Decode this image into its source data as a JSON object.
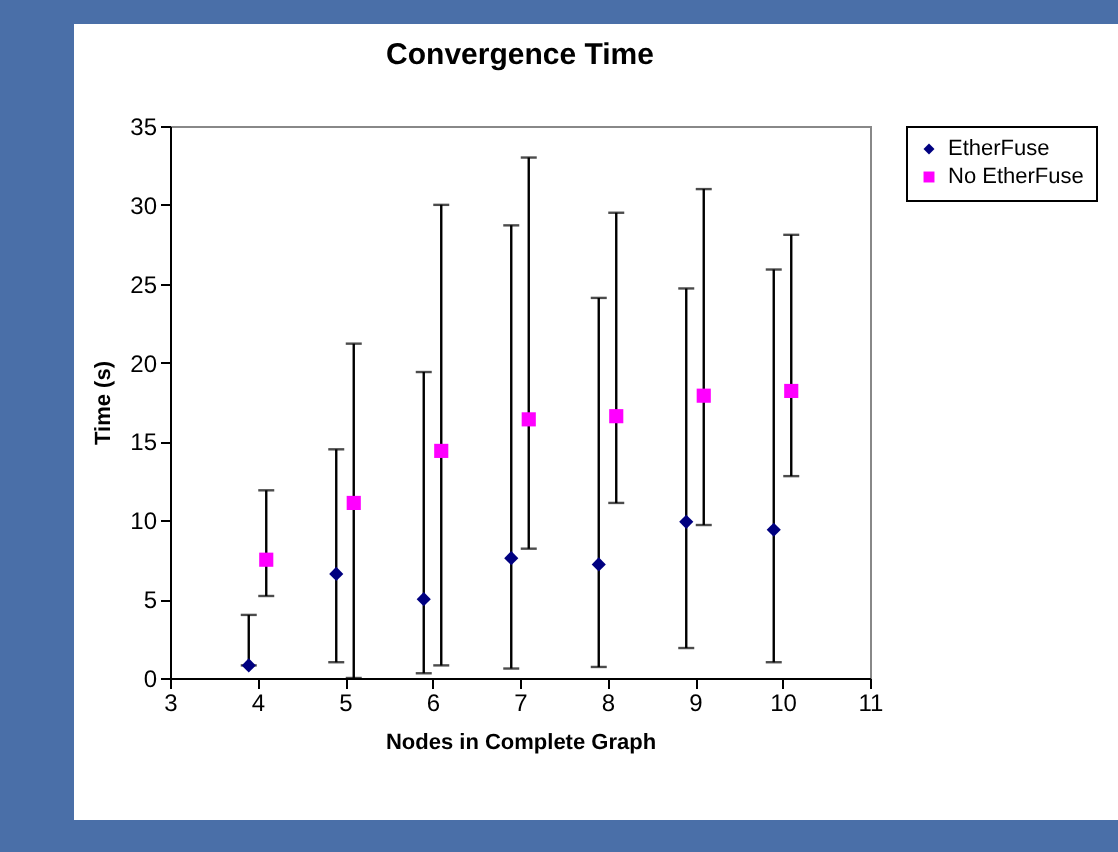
{
  "chart_data": {
    "type": "scatter",
    "title": "Convergence Time",
    "xlabel": "Nodes in Complete Graph",
    "ylabel": "Time (s)",
    "xlim": [
      3,
      11
    ],
    "xticks": [
      3,
      4,
      5,
      6,
      7,
      8,
      9,
      10,
      11
    ],
    "ylim": [
      0,
      35
    ],
    "yticks": [
      0,
      5,
      10,
      15,
      20,
      25,
      30,
      35
    ],
    "grid": false,
    "legend": "right",
    "series": [
      {
        "name": "EtherFuse",
        "color": "#000080",
        "marker": "diamond",
        "x": [
          3.9,
          4.9,
          5.9,
          6.9,
          7.9,
          8.9,
          9.9
        ],
        "values": [
          0.8,
          6.6,
          5.0,
          7.6,
          7.2,
          9.9,
          9.4
        ],
        "errors": [
          [
            0.8,
            4.0
          ],
          [
            1.0,
            14.5
          ],
          [
            0.3,
            19.4
          ],
          [
            0.6,
            28.7
          ],
          [
            0.7,
            24.1
          ],
          [
            1.9,
            24.7
          ],
          [
            1.0,
            25.9
          ]
        ]
      },
      {
        "name": "No EtherFuse",
        "color": "#ff00ff",
        "marker": "square",
        "x": [
          4.1,
          5.1,
          6.1,
          7.1,
          8.1,
          9.1,
          10.1
        ],
        "values": [
          7.5,
          11.1,
          14.4,
          16.4,
          16.6,
          17.9,
          18.2
        ],
        "errors": [
          [
            5.2,
            11.9
          ],
          [
            0,
            21.2
          ],
          [
            0.8,
            30.0
          ],
          [
            8.2,
            33.0
          ],
          [
            11.1,
            29.5
          ],
          [
            9.7,
            31.0
          ],
          [
            12.8,
            28.1
          ]
        ]
      }
    ]
  }
}
